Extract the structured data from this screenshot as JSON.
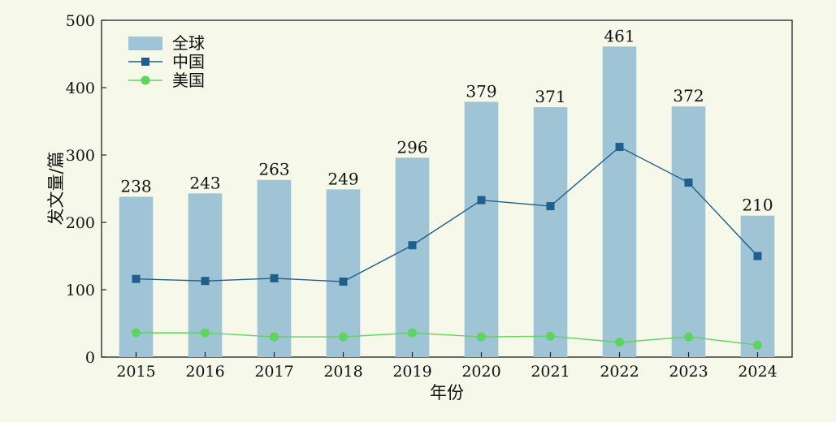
{
  "chart_data": {
    "type": "bar",
    "title": "",
    "xlabel": "年份",
    "ylabel": "发文量/篇",
    "categories": [
      "2015",
      "2016",
      "2017",
      "2018",
      "2019",
      "2020",
      "2021",
      "2022",
      "2023",
      "2024"
    ],
    "ylim": [
      0,
      500
    ],
    "yticks": [
      "0",
      "100",
      "200",
      "300",
      "400",
      "500"
    ],
    "grid": false,
    "legend_position": "top-left",
    "series": [
      {
        "name": "全球",
        "type": "bar",
        "color": "#9fc4d5",
        "values": [
          238,
          243,
          263,
          249,
          296,
          379,
          371,
          461,
          372,
          210
        ],
        "labels": [
          "238",
          "243",
          "263",
          "249",
          "296",
          "379",
          "371",
          "461",
          "372",
          "210"
        ]
      },
      {
        "name": "中国",
        "type": "line",
        "marker": "square",
        "color": "#1f5f8b",
        "values": [
          116,
          113,
          117,
          112,
          166,
          233,
          224,
          312,
          259,
          150
        ]
      },
      {
        "name": "美国",
        "type": "line",
        "marker": "circle",
        "color": "#5dd45e",
        "values": [
          36,
          36,
          30,
          30,
          36,
          30,
          31,
          22,
          30,
          18
        ]
      }
    ]
  }
}
